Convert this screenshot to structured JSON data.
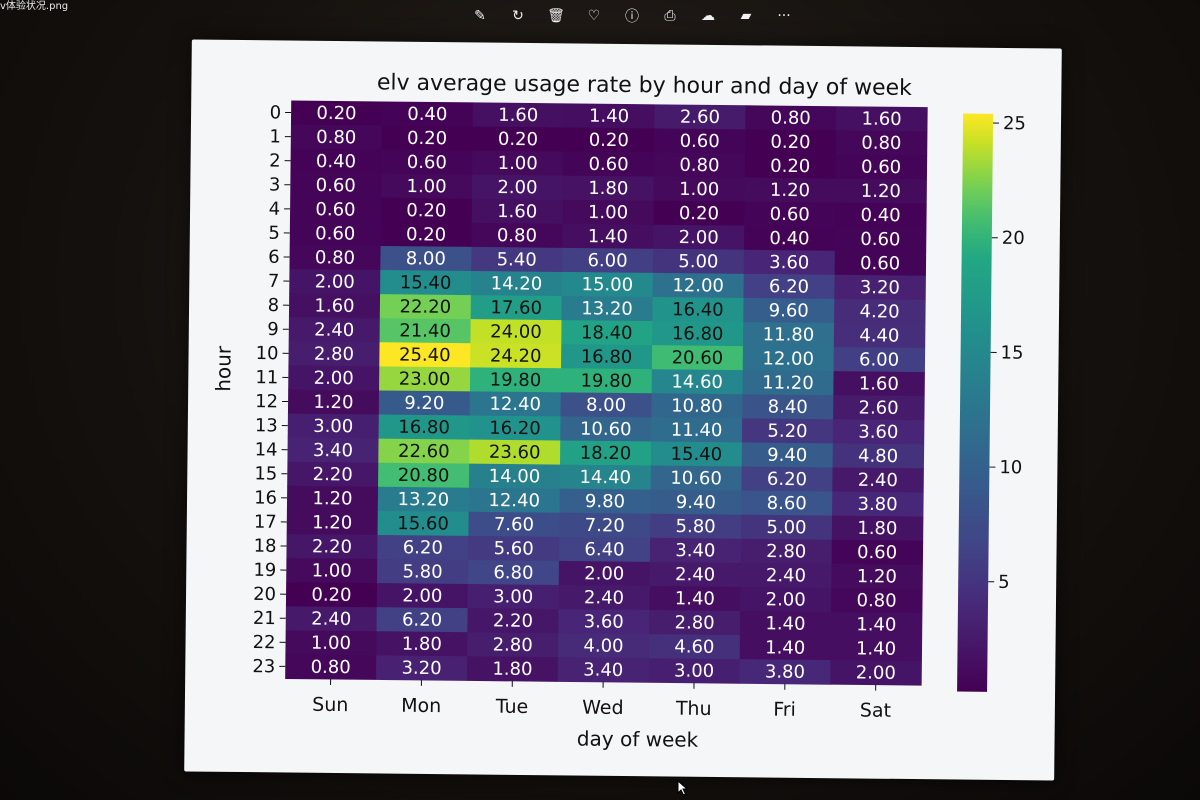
{
  "window": {
    "filename": "v体验状况.png",
    "toolbar": [
      {
        "name": "edit-icon",
        "glyph": "✎"
      },
      {
        "name": "rotate-icon",
        "glyph": "↻"
      },
      {
        "name": "delete-icon",
        "glyph": "🗑"
      },
      {
        "name": "favorite-icon",
        "glyph": "♡"
      },
      {
        "name": "info-icon",
        "glyph": "ⓘ"
      },
      {
        "name": "print-icon",
        "glyph": "⎙"
      },
      {
        "name": "cloud-icon",
        "glyph": "☁"
      },
      {
        "name": "video-icon",
        "glyph": "▰"
      },
      {
        "name": "more-icon",
        "glyph": "···"
      }
    ]
  },
  "chart_data": {
    "type": "heatmap",
    "title": "elv average usage rate by hour and day of week",
    "xlabel": "day of week",
    "ylabel": "hour",
    "x_categories": [
      "Sun",
      "Mon",
      "Tue",
      "Wed",
      "Thu",
      "Fri",
      "Sat"
    ],
    "y_categories": [
      "0",
      "1",
      "2",
      "3",
      "4",
      "5",
      "6",
      "7",
      "8",
      "9",
      "10",
      "11",
      "12",
      "13",
      "14",
      "15",
      "16",
      "17",
      "18",
      "19",
      "20",
      "21",
      "22",
      "23"
    ],
    "values": [
      [
        0.2,
        0.4,
        1.6,
        1.4,
        2.6,
        0.8,
        1.6
      ],
      [
        0.8,
        0.2,
        0.2,
        0.2,
        0.6,
        0.2,
        0.8
      ],
      [
        0.4,
        0.6,
        1.0,
        0.6,
        0.8,
        0.2,
        0.6
      ],
      [
        0.6,
        1.0,
        2.0,
        1.8,
        1.0,
        1.2,
        1.2
      ],
      [
        0.6,
        0.2,
        1.6,
        1.0,
        0.2,
        0.6,
        0.4
      ],
      [
        0.6,
        0.2,
        0.8,
        1.4,
        2.0,
        0.4,
        0.6
      ],
      [
        0.8,
        8.0,
        5.4,
        6.0,
        5.0,
        3.6,
        0.6
      ],
      [
        2.0,
        15.4,
        14.2,
        15.0,
        12.0,
        6.2,
        3.2
      ],
      [
        1.6,
        22.2,
        17.6,
        13.2,
        16.4,
        9.6,
        4.2
      ],
      [
        2.4,
        21.4,
        24.0,
        18.4,
        16.8,
        11.8,
        4.4
      ],
      [
        2.8,
        25.4,
        24.2,
        16.8,
        20.6,
        12.0,
        6.0
      ],
      [
        2.0,
        23.0,
        19.8,
        19.8,
        14.6,
        11.2,
        1.6
      ],
      [
        1.2,
        9.2,
        12.4,
        8.0,
        10.8,
        8.4,
        2.6
      ],
      [
        3.0,
        16.8,
        16.2,
        10.6,
        11.4,
        5.2,
        3.6
      ],
      [
        3.4,
        22.6,
        23.6,
        18.2,
        15.4,
        9.4,
        4.8
      ],
      [
        2.2,
        20.8,
        14.0,
        14.4,
        10.6,
        6.2,
        2.4
      ],
      [
        1.2,
        13.2,
        12.4,
        9.8,
        9.4,
        8.6,
        3.8
      ],
      [
        1.2,
        15.6,
        7.6,
        7.2,
        5.8,
        5.0,
        1.8
      ],
      [
        2.2,
        6.2,
        5.6,
        6.4,
        3.4,
        2.8,
        0.6
      ],
      [
        1.0,
        5.8,
        6.8,
        2.0,
        2.4,
        2.4,
        1.2
      ],
      [
        0.2,
        2.0,
        3.0,
        2.4,
        1.4,
        2.0,
        0.8
      ],
      [
        2.4,
        6.2,
        2.2,
        3.6,
        2.8,
        1.4,
        1.4
      ],
      [
        1.0,
        1.8,
        2.8,
        4.0,
        4.6,
        1.4,
        1.4
      ],
      [
        0.8,
        3.2,
        1.8,
        3.4,
        3.0,
        3.8,
        2.0
      ]
    ],
    "value_format": "2 decimals",
    "colormap": "viridis",
    "vmin": 0.2,
    "vmax": 25.4,
    "colorbar_ticks": [
      5,
      10,
      15,
      20,
      25
    ],
    "annotations": true
  }
}
